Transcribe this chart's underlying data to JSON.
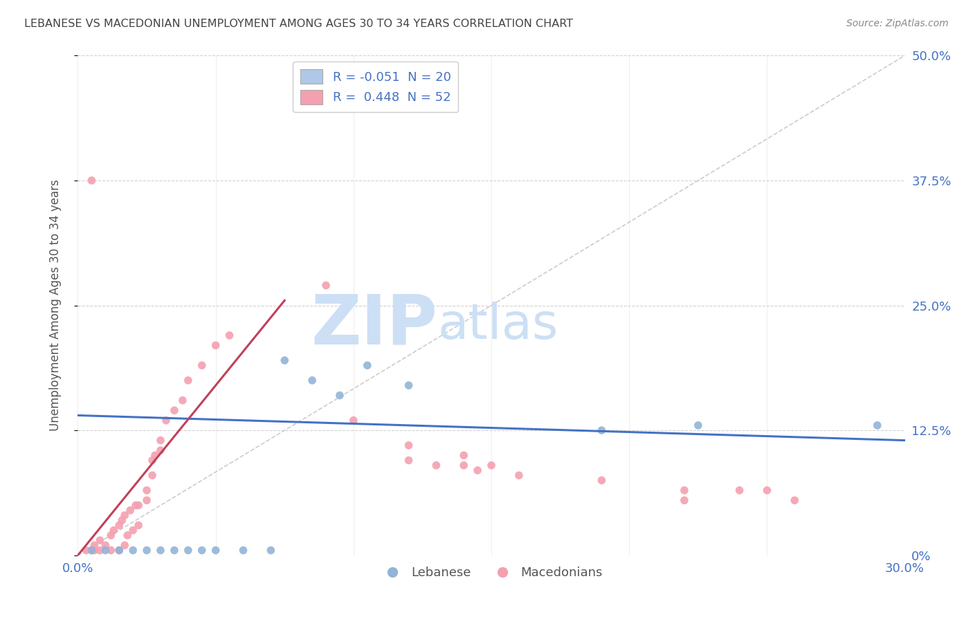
{
  "title": "LEBANESE VS MACEDONIAN UNEMPLOYMENT AMONG AGES 30 TO 34 YEARS CORRELATION CHART",
  "source": "Source: ZipAtlas.com",
  "ylabel": "Unemployment Among Ages 30 to 34 years",
  "xlim": [
    0.0,
    0.3
  ],
  "ylim": [
    0.0,
    0.5
  ],
  "xticks": [
    0.0,
    0.05,
    0.1,
    0.15,
    0.2,
    0.25,
    0.3
  ],
  "yticks_right": [
    0.0,
    0.125,
    0.25,
    0.375,
    0.5
  ],
  "ytick_labels_right": [
    "0%",
    "12.5%",
    "25.0%",
    "37.5%",
    "50.0%"
  ],
  "legend_r_lebanese": "-0.051",
  "legend_n_lebanese": "20",
  "legend_r_macedonian": "0.448",
  "legend_n_macedonian": "52",
  "lebanese_color": "#92b4d8",
  "macedonian_color": "#f4a0b0",
  "trend_lebanese_color": "#4472c4",
  "trend_macedonian_color": "#c0405a",
  "diagonal_color": "#cccccc",
  "lebanese_points": [
    [
      0.005,
      0.005
    ],
    [
      0.01,
      0.005
    ],
    [
      0.015,
      0.005
    ],
    [
      0.02,
      0.005
    ],
    [
      0.025,
      0.005
    ],
    [
      0.03,
      0.005
    ],
    [
      0.035,
      0.005
    ],
    [
      0.04,
      0.005
    ],
    [
      0.045,
      0.005
    ],
    [
      0.05,
      0.005
    ],
    [
      0.06,
      0.005
    ],
    [
      0.07,
      0.005
    ],
    [
      0.075,
      0.195
    ],
    [
      0.085,
      0.175
    ],
    [
      0.095,
      0.16
    ],
    [
      0.105,
      0.19
    ],
    [
      0.12,
      0.17
    ],
    [
      0.19,
      0.125
    ],
    [
      0.225,
      0.13
    ],
    [
      0.29,
      0.13
    ]
  ],
  "macedonian_points": [
    [
      0.003,
      0.005
    ],
    [
      0.006,
      0.005
    ],
    [
      0.008,
      0.005
    ],
    [
      0.01,
      0.01
    ],
    [
      0.012,
      0.005
    ],
    [
      0.015,
      0.005
    ],
    [
      0.017,
      0.01
    ],
    [
      0.018,
      0.02
    ],
    [
      0.02,
      0.025
    ],
    [
      0.022,
      0.03
    ],
    [
      0.022,
      0.05
    ],
    [
      0.025,
      0.055
    ],
    [
      0.025,
      0.065
    ],
    [
      0.027,
      0.08
    ],
    [
      0.027,
      0.095
    ],
    [
      0.028,
      0.1
    ],
    [
      0.03,
      0.105
    ],
    [
      0.03,
      0.115
    ],
    [
      0.032,
      0.135
    ],
    [
      0.035,
      0.145
    ],
    [
      0.038,
      0.155
    ],
    [
      0.04,
      0.175
    ],
    [
      0.045,
      0.19
    ],
    [
      0.05,
      0.21
    ],
    [
      0.055,
      0.22
    ],
    [
      0.005,
      0.375
    ],
    [
      0.09,
      0.27
    ],
    [
      0.1,
      0.135
    ],
    [
      0.12,
      0.11
    ],
    [
      0.12,
      0.095
    ],
    [
      0.13,
      0.09
    ],
    [
      0.14,
      0.09
    ],
    [
      0.14,
      0.1
    ],
    [
      0.145,
      0.085
    ],
    [
      0.15,
      0.09
    ],
    [
      0.16,
      0.08
    ],
    [
      0.19,
      0.075
    ],
    [
      0.22,
      0.055
    ],
    [
      0.22,
      0.065
    ],
    [
      0.24,
      0.065
    ],
    [
      0.25,
      0.065
    ],
    [
      0.26,
      0.055
    ],
    [
      0.005,
      0.005
    ],
    [
      0.006,
      0.01
    ],
    [
      0.008,
      0.015
    ],
    [
      0.012,
      0.02
    ],
    [
      0.013,
      0.025
    ],
    [
      0.015,
      0.03
    ],
    [
      0.016,
      0.035
    ],
    [
      0.017,
      0.04
    ],
    [
      0.019,
      0.045
    ],
    [
      0.021,
      0.05
    ]
  ],
  "background_color": "#ffffff",
  "grid_color": "#d0d0d0",
  "title_color": "#444444",
  "axis_label_color": "#555555",
  "tick_label_color": "#4472c4",
  "watermark_zip": "ZIP",
  "watermark_atlas": "atlas",
  "watermark_color": "#ccdff5",
  "marker_size": 70,
  "legend_box_color_leb": "#b0c8e8",
  "legend_box_color_mac": "#f4a0b0"
}
